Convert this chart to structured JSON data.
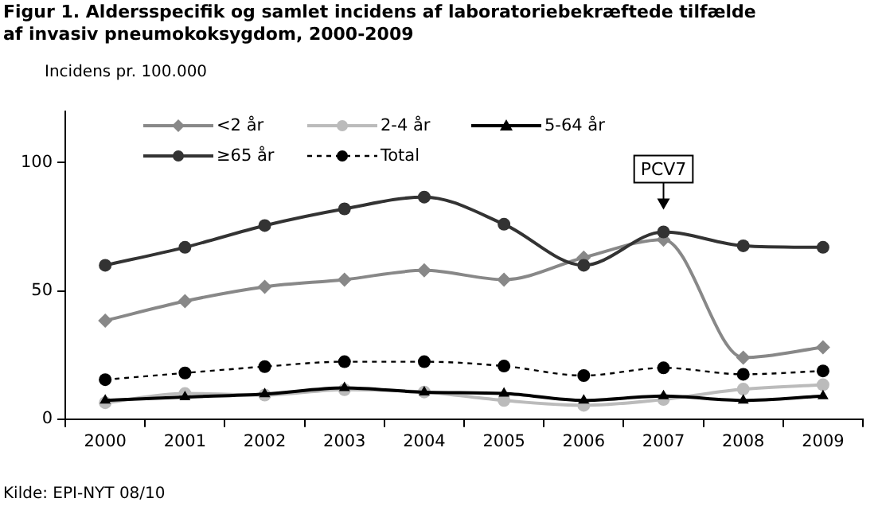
{
  "chart_data": {
    "type": "line",
    "title": "Figur 1. Aldersspecifik og samlet incidens af laboratoriebekræftede tilfælde af invasiv pneumokoksygdom, 2000-2009",
    "ylabel": "Incidens pr. 100.000",
    "categories": [
      "2000",
      "2001",
      "2002",
      "2003",
      "2004",
      "2005",
      "2006",
      "2007",
      "2008",
      "2009"
    ],
    "series": [
      {
        "name": "<2 år",
        "color": "#888888",
        "marker": "diamond",
        "line_style": "solid",
        "values": [
          38.4,
          46,
          51.6,
          54.4,
          58,
          54.4,
          63,
          70,
          24,
          28
        ]
      },
      {
        "name": "2-4 år",
        "color": "#bbbbbb",
        "marker": "circle",
        "line_style": "solid",
        "values": [
          6.4,
          10,
          9.4,
          11.5,
          10.6,
          7.3,
          5.4,
          7.7,
          11.7,
          13.4
        ]
      },
      {
        "name": "5-64 år",
        "color": "#000000",
        "marker": "triangle",
        "line_style": "solid",
        "values": [
          7.3,
          8.6,
          9.8,
          12.2,
          10.5,
          10,
          7.3,
          9,
          7.3,
          9
        ]
      },
      {
        "name": "≥65 år",
        "color": "#333333",
        "marker": "circle",
        "line_style": "solid",
        "values": [
          60,
          67,
          75.5,
          82,
          86.6,
          76,
          60,
          73,
          67.6,
          67
        ]
      },
      {
        "name": "Total",
        "color": "#000000",
        "marker": "circle",
        "line_style": "dashed",
        "values": [
          15.4,
          18,
          20.5,
          22.4,
          22.4,
          20.7,
          17,
          20,
          17.5,
          18.8
        ]
      }
    ],
    "ylim": [
      0,
      120
    ],
    "yticks": [
      0,
      50,
      100
    ],
    "grid": false,
    "legend": "top",
    "annotations": [
      {
        "text": "PCV7",
        "x": "2007",
        "y": 73
      },
      "Kilde: EPI-NYT 08/10"
    ]
  }
}
